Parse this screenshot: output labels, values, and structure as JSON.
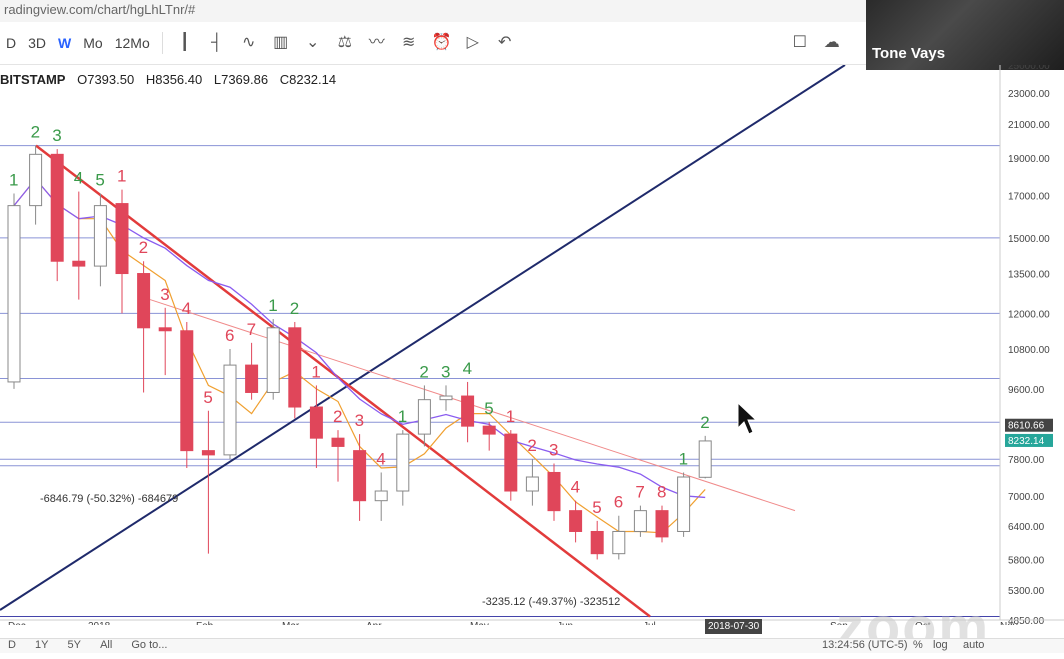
{
  "browser": {
    "url": "radingview.com/chart/hgLhLTnr/#"
  },
  "toolbar": {
    "intervals": [
      "D",
      "3D",
      "W",
      "Mo",
      "12Mo"
    ],
    "active_interval": "W",
    "icons": [
      "candles-icon",
      "bars-icon",
      "line-icon",
      "compare-icon",
      "chevron-down-icon",
      "indicators-icon",
      "templates-icon",
      "alert-icon",
      "replay-icon",
      "undo-icon",
      "redo-icon",
      "fullscreen-icon",
      "snapshot-icon"
    ]
  },
  "legend": {
    "symbol": "BITSTAMP",
    "open": "O7393.50",
    "high": "H8356.40",
    "low": "L7369.86",
    "close": "C8232.14"
  },
  "webcam": {
    "name": "Tone Vays"
  },
  "watermark": "zoom",
  "cursor_date": "2018-07-30",
  "bottom_bar": {
    "ranges": [
      "D",
      "1Y",
      "5Y",
      "All"
    ],
    "goto": "Go to...",
    "time": "13:24:56 (UTC-5)",
    "opts": [
      "%",
      "log",
      "auto"
    ]
  },
  "chart_data": {
    "type": "candlestick",
    "y_axis_ticks": [
      4850,
      5300,
      5800,
      6400,
      7000,
      7800,
      8610.66,
      9600,
      10800,
      12000,
      13500,
      15000,
      17000,
      19000,
      21000,
      23000,
      25000
    ],
    "y_axis_labels": [
      "4850.00",
      "5300.00",
      "5800.00",
      "6400.00",
      "7000.00",
      "7800.00",
      "8610.66",
      "9600.00",
      "10800.00",
      "12000.00",
      "13500.00",
      "15000.00",
      "17000.00",
      "19000.00",
      "21000.00",
      "23000.00",
      "25000.00"
    ],
    "price_tags": [
      {
        "value": "8610.66",
        "color": "#444444"
      },
      {
        "value": "8232.14",
        "color": "#26a69a"
      }
    ],
    "x_axis_labels": [
      "Dec",
      "2018",
      "Feb",
      "Mar",
      "Apr",
      "May",
      "Jun",
      "Jul",
      "Sep",
      "Oct",
      "Nov"
    ],
    "bearish_color": "#e0465a",
    "bullish_color": "#ffffff",
    "candles": [
      {
        "o": 9800,
        "c": 16500,
        "h": 17100,
        "l": 9600
      },
      {
        "o": 16500,
        "c": 19200,
        "h": 19700,
        "l": 15600
      },
      {
        "o": 19200,
        "c": 14000,
        "h": 19500,
        "l": 13200
      },
      {
        "o": 14000,
        "c": 13800,
        "h": 17200,
        "l": 12500
      },
      {
        "o": 13800,
        "c": 16500,
        "h": 17100,
        "l": 13000
      },
      {
        "o": 16600,
        "c": 13500,
        "h": 17300,
        "l": 12000
      },
      {
        "o": 13500,
        "c": 11500,
        "h": 14000,
        "l": 9500
      },
      {
        "o": 11500,
        "c": 11400,
        "h": 12200,
        "l": 10000
      },
      {
        "o": 11400,
        "c": 8000,
        "h": 11700,
        "l": 7600
      },
      {
        "o": 8000,
        "c": 7900,
        "h": 9000,
        "l": 5900
      },
      {
        "o": 7900,
        "c": 10300,
        "h": 10800,
        "l": 7800
      },
      {
        "o": 10300,
        "c": 9500,
        "h": 11000,
        "l": 9300
      },
      {
        "o": 9500,
        "c": 11500,
        "h": 11800,
        "l": 9300
      },
      {
        "o": 11500,
        "c": 9100,
        "h": 11700,
        "l": 8800
      },
      {
        "o": 9100,
        "c": 8300,
        "h": 9700,
        "l": 7600
      },
      {
        "o": 8300,
        "c": 8100,
        "h": 8500,
        "l": 7300
      },
      {
        "o": 8000,
        "c": 6900,
        "h": 8400,
        "l": 6500
      },
      {
        "o": 6900,
        "c": 7100,
        "h": 7500,
        "l": 6500
      },
      {
        "o": 7100,
        "c": 8400,
        "h": 8500,
        "l": 6800
      },
      {
        "o": 8400,
        "c": 9300,
        "h": 9700,
        "l": 8100
      },
      {
        "o": 9300,
        "c": 9400,
        "h": 9700,
        "l": 9000
      },
      {
        "o": 9400,
        "c": 8600,
        "h": 9800,
        "l": 8200
      },
      {
        "o": 8600,
        "c": 8400,
        "h": 8700,
        "l": 8000
      },
      {
        "o": 8400,
        "c": 7100,
        "h": 8500,
        "l": 6900
      },
      {
        "o": 7100,
        "c": 7400,
        "h": 7800,
        "l": 6800
      },
      {
        "o": 7500,
        "c": 6700,
        "h": 7700,
        "l": 6500
      },
      {
        "o": 6700,
        "c": 6300,
        "h": 6900,
        "l": 6100
      },
      {
        "o": 6300,
        "c": 5900,
        "h": 6500,
        "l": 5800
      },
      {
        "o": 5900,
        "c": 6300,
        "h": 6600,
        "l": 5800
      },
      {
        "o": 6300,
        "c": 6700,
        "h": 6800,
        "l": 6200
      },
      {
        "o": 6700,
        "c": 6200,
        "h": 6800,
        "l": 6100
      },
      {
        "o": 6300,
        "c": 7400,
        "h": 7500,
        "l": 6200
      },
      {
        "o": 7393.5,
        "c": 8232.14,
        "h": 8356.4,
        "l": 7369.86
      }
    ],
    "horizontal_levels": [
      19700,
      15000,
      12000,
      9900,
      8700,
      7800,
      7650,
      4900
    ],
    "annotations": {
      "counts": [
        {
          "i": 0,
          "t": "1",
          "c": "green",
          "above": true
        },
        {
          "i": 1,
          "t": "2",
          "c": "green",
          "above": true
        },
        {
          "i": 2,
          "t": "3",
          "c": "green",
          "above": true
        },
        {
          "i": 3,
          "t": "4",
          "c": "green",
          "above": true
        },
        {
          "i": 4,
          "t": "5",
          "c": "green",
          "above": true
        },
        {
          "i": 5,
          "t": "1",
          "c": "red",
          "above": true
        },
        {
          "i": 6,
          "t": "2",
          "c": "red",
          "above": true
        },
        {
          "i": 7,
          "t": "3",
          "c": "red",
          "above": true
        },
        {
          "i": 8,
          "t": "4",
          "c": "red",
          "above": true
        },
        {
          "i": 9,
          "t": "5",
          "c": "red",
          "above": true
        },
        {
          "i": 10,
          "t": "6",
          "c": "red",
          "above": true
        },
        {
          "i": 11,
          "t": "7",
          "c": "red",
          "above": true
        },
        {
          "i": 12,
          "t": "1",
          "c": "green",
          "above": true
        },
        {
          "i": 13,
          "t": "2",
          "c": "green",
          "above": true
        },
        {
          "i": 14,
          "t": "1",
          "c": "red",
          "above": true
        },
        {
          "i": 15,
          "t": "2",
          "c": "red",
          "above": true
        },
        {
          "i": 16,
          "t": "3",
          "c": "red",
          "above": true
        },
        {
          "i": 17,
          "t": "4",
          "c": "red",
          "above": true
        },
        {
          "i": 18,
          "t": "1",
          "c": "green",
          "above": true
        },
        {
          "i": 19,
          "t": "2",
          "c": "green",
          "above": true
        },
        {
          "i": 20,
          "t": "3",
          "c": "green",
          "above": true
        },
        {
          "i": 21,
          "t": "4",
          "c": "green",
          "above": true
        },
        {
          "i": 22,
          "t": "5",
          "c": "green",
          "above": true
        },
        {
          "i": 23,
          "t": "1",
          "c": "red",
          "above": true
        },
        {
          "i": 24,
          "t": "2",
          "c": "red",
          "above": true
        },
        {
          "i": 25,
          "t": "3",
          "c": "red",
          "above": true
        },
        {
          "i": 26,
          "t": "4",
          "c": "red",
          "above": true
        },
        {
          "i": 27,
          "t": "5",
          "c": "red",
          "above": true
        },
        {
          "i": 28,
          "t": "6",
          "c": "red",
          "above": true
        },
        {
          "i": 29,
          "t": "7",
          "c": "red",
          "above": true
        },
        {
          "i": 30,
          "t": "8",
          "c": "red",
          "above": true
        },
        {
          "i": 31,
          "t": "1",
          "c": "green",
          "above": true
        },
        {
          "i": 32,
          "t": "2",
          "c": "green",
          "above": true
        }
      ],
      "measures": [
        {
          "text": "-6846.79 (-50.32%) -684679"
        },
        {
          "text": "-3235.12 (-49.37%) -323512"
        }
      ]
    }
  }
}
